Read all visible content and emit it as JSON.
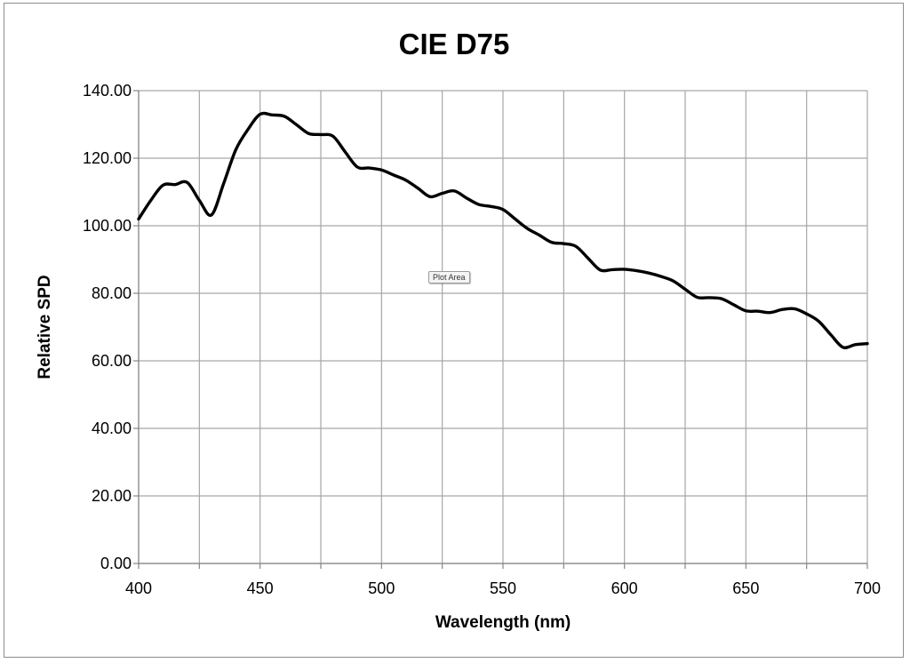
{
  "chart_data": {
    "type": "line",
    "title": "CIE D75",
    "xlabel": "Wavelength (nm)",
    "ylabel": "Relative SPD",
    "xlim": [
      400,
      700
    ],
    "ylim": [
      0,
      140
    ],
    "x_ticks": [
      "400",
      "450",
      "500",
      "550",
      "600",
      "650",
      "700"
    ],
    "y_ticks": [
      "0.00",
      "20.00",
      "40.00",
      "60.00",
      "80.00",
      "100.00",
      "120.00",
      "140.00"
    ],
    "grid": true,
    "legend": "none",
    "series": [
      {
        "color": "#000000",
        "x": [
          400,
          405,
          410,
          415,
          420,
          425,
          430,
          435,
          440,
          445,
          450,
          455,
          460,
          465,
          470,
          475,
          480,
          485,
          490,
          495,
          500,
          505,
          510,
          515,
          520,
          525,
          530,
          535,
          540,
          545,
          550,
          555,
          560,
          565,
          570,
          575,
          580,
          585,
          590,
          595,
          600,
          605,
          610,
          615,
          620,
          625,
          630,
          635,
          640,
          645,
          650,
          655,
          660,
          665,
          670,
          675,
          680,
          685,
          690,
          695,
          700
        ],
        "values": [
          102.0,
          107.5,
          112.0,
          112.2,
          112.8,
          107.5,
          103.2,
          112.5,
          122.5,
          128.5,
          133.0,
          132.8,
          132.4,
          129.9,
          127.3,
          127.0,
          126.5,
          121.9,
          117.4,
          117.1,
          116.5,
          115.0,
          113.5,
          111.1,
          108.6,
          109.6,
          110.3,
          108.2,
          106.3,
          105.7,
          104.8,
          102.0,
          99.2,
          97.2,
          95.1,
          94.7,
          93.9,
          90.4,
          86.9,
          87.0,
          87.1,
          86.7,
          86.0,
          85.0,
          83.7,
          81.2,
          78.8,
          78.7,
          78.4,
          76.6,
          74.8,
          74.7,
          74.3,
          75.2,
          75.4,
          73.9,
          71.7,
          67.7,
          64.0,
          64.8,
          65.1
        ]
      }
    ]
  },
  "annotations": {
    "plot_area_tag": "Plot Area"
  }
}
